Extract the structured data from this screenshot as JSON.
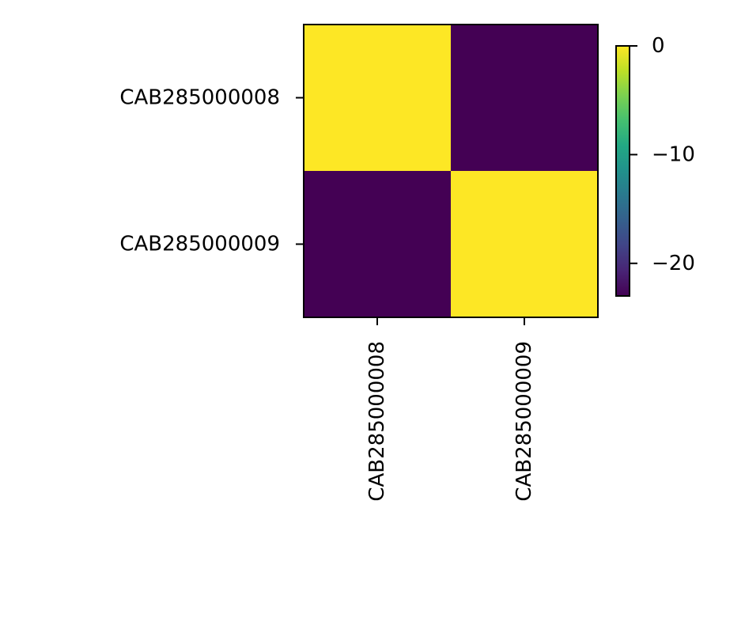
{
  "chart_data": {
    "type": "heatmap",
    "title": "",
    "xlabel": "",
    "ylabel": "",
    "x_categories": [
      "CAB285000008",
      "CAB285000009"
    ],
    "y_categories": [
      "CAB285000008",
      "CAB285000009"
    ],
    "values": [
      [
        0,
        -23
      ],
      [
        -23,
        0
      ]
    ],
    "colormap": "viridis",
    "colorbar": {
      "vmin": -23,
      "vmax": 0,
      "ticks": [
        0,
        -10,
        -20
      ],
      "tick_labels": [
        "0",
        "−10",
        "−20"
      ]
    },
    "colors": {
      "low": "#440154",
      "high": "#fde725"
    }
  }
}
